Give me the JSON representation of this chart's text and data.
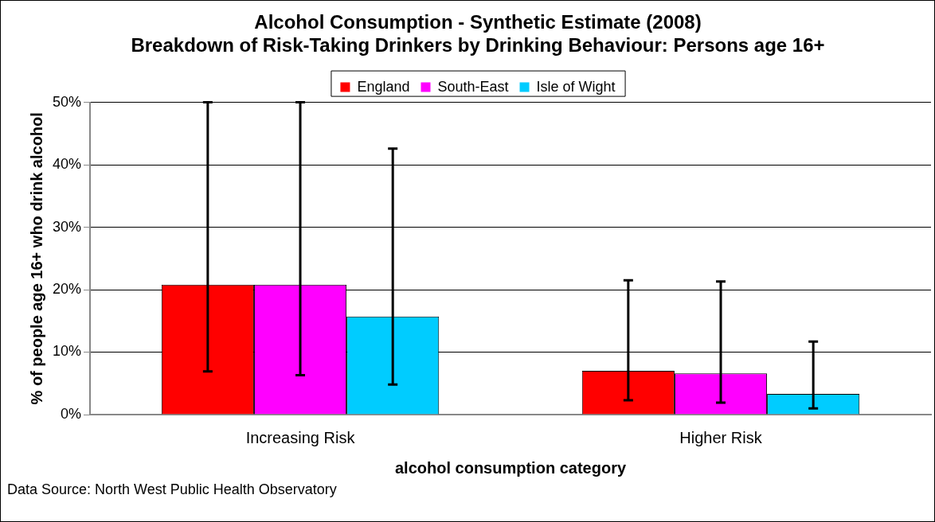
{
  "chart_data": {
    "type": "bar",
    "title": "Alcohol Consumption - Synthetic Estimate (2008)",
    "subtitle": "Breakdown of Risk-Taking Drinkers by Drinking Behaviour: Persons age 16+",
    "xlabel": "alcohol consumption category",
    "ylabel": "% of people age 16+ who drink alcohol",
    "categories": [
      "Increasing Risk",
      "Higher Risk"
    ],
    "series": [
      {
        "name": "England",
        "color": "#ff0000",
        "values": [
          20.8,
          7.0
        ],
        "errors": [
          [
            6.9,
            50
          ],
          [
            2.3,
            21.5
          ]
        ]
      },
      {
        "name": "South-East",
        "color": "#ff00ff",
        "values": [
          20.8,
          6.6
        ],
        "errors": [
          [
            6.3,
            50
          ],
          [
            1.9,
            21.3
          ]
        ]
      },
      {
        "name": "Isle of Wight",
        "color": "#00ccff",
        "values": [
          15.7,
          3.3
        ],
        "errors": [
          [
            4.8,
            42.6
          ],
          [
            1.0,
            11.7
          ]
        ]
      }
    ],
    "ylim": [
      0,
      50
    ],
    "yticks": [
      {
        "value": 0,
        "label": "0%"
      },
      {
        "value": 10,
        "label": "10%"
      },
      {
        "value": 20,
        "label": "20%"
      },
      {
        "value": 30,
        "label": "30%"
      },
      {
        "value": 40,
        "label": "40%"
      },
      {
        "value": 50,
        "label": "50%"
      }
    ],
    "grid": "y",
    "legend": "top",
    "annotations": [
      "Data Source: North West Public Health Observatory"
    ]
  }
}
